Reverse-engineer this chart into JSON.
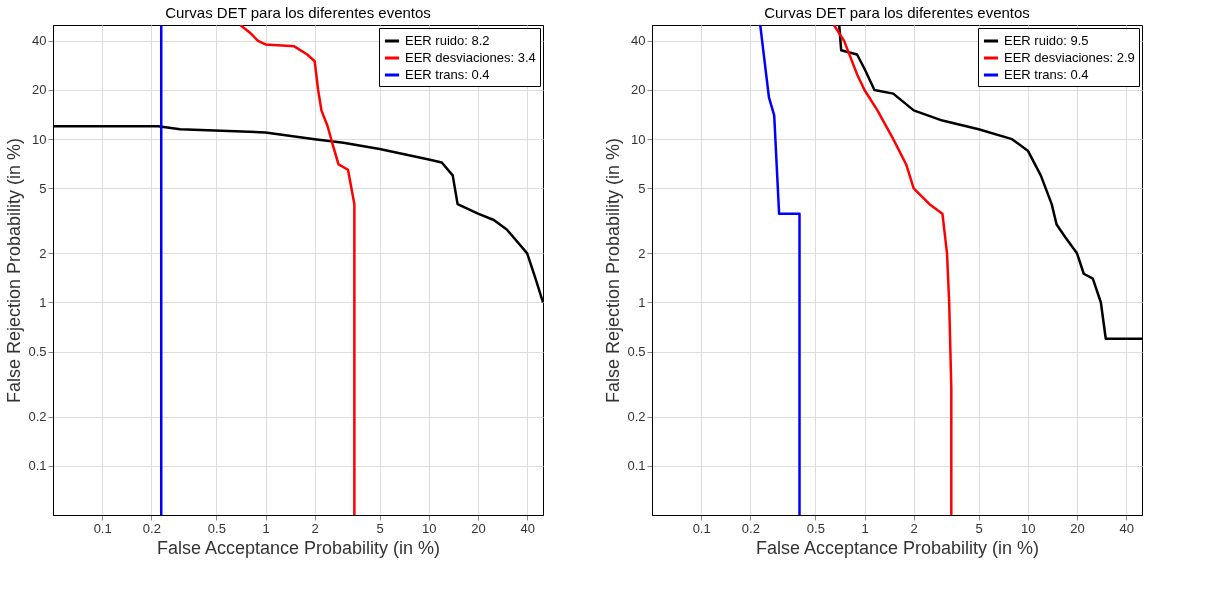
{
  "chart_data": [
    {
      "type": "line",
      "title": "Curvas DET para los diferentes eventos",
      "xlabel": "False Acceptance Probability (in %)",
      "ylabel": "False Rejection Probability (in %)",
      "log": "xy",
      "xlim": [
        0.05,
        50
      ],
      "ylim": [
        0.05,
        50
      ],
      "xticks": [
        0.1,
        0.2,
        0.5,
        1,
        2,
        5,
        10,
        20,
        40
      ],
      "yticks": [
        0.1,
        0.2,
        0.5,
        1,
        2,
        5,
        10,
        20,
        40
      ],
      "grid": true,
      "legend": "top right",
      "series": [
        {
          "name": "EER ruido: 8.2",
          "color": "#000000",
          "x": [
            0.05,
            0.22,
            0.3,
            1,
            2,
            3,
            5,
            10,
            12,
            14,
            15,
            20,
            25,
            30,
            40,
            45,
            50
          ],
          "values": [
            12,
            12,
            11.5,
            11,
            10,
            9.5,
            8.7,
            7.5,
            7.2,
            6,
            4,
            3.5,
            3.2,
            2.8,
            2,
            1.4,
            1.0
          ]
        },
        {
          "name": "EER desviaciones: 3.4",
          "color": "#ff0000",
          "x": [
            0.7,
            0.8,
            0.9,
            1,
            1.5,
            1.8,
            2,
            2.1,
            2.2,
            2.4,
            2.6,
            2.8,
            3.2,
            3.5,
            3.5
          ],
          "values": [
            50,
            45,
            40,
            38,
            37,
            33,
            30,
            20,
            15,
            12,
            9,
            7,
            6.5,
            4,
            0.05
          ]
        },
        {
          "name": "EER trans: 0.4",
          "color": "#0000ff",
          "x": [
            0.23,
            0.23
          ],
          "values": [
            0.05,
            50
          ]
        }
      ]
    },
    {
      "type": "line",
      "title": "Curvas DET para los diferentes eventos",
      "xlabel": "False Acceptance Probability (in %)",
      "ylabel": "False Rejection Probability (in %)",
      "log": "xy",
      "xlim": [
        0.05,
        50
      ],
      "ylim": [
        0.05,
        50
      ],
      "xticks": [
        0.1,
        0.2,
        0.5,
        1,
        2,
        5,
        10,
        20,
        40
      ],
      "yticks": [
        0.1,
        0.2,
        0.5,
        1,
        2,
        5,
        10,
        20,
        40
      ],
      "grid": true,
      "legend": "top right",
      "series": [
        {
          "name": "EER ruido: 9.5",
          "color": "#000000",
          "x": [
            0.7,
            0.72,
            0.9,
            1.0,
            1.15,
            1.5,
            2,
            3,
            5,
            8,
            10,
            12,
            14,
            15,
            17,
            20,
            22,
            25,
            28,
            30,
            50
          ],
          "values": [
            50,
            35,
            33,
            27,
            20,
            19,
            15,
            13,
            11.5,
            10,
            8.5,
            6,
            4,
            3,
            2.5,
            2,
            1.5,
            1.4,
            1,
            0.6,
            0.6
          ]
        },
        {
          "name": "EER desviaciones: 2.9",
          "color": "#ff0000",
          "x": [
            0.65,
            0.75,
            0.9,
            1,
            1.2,
            1.5,
            1.8,
            2,
            2.5,
            3,
            3.2,
            3.3,
            3.4,
            3.4
          ],
          "values": [
            50,
            40,
            25,
            20,
            15,
            10,
            7,
            5,
            4,
            3.5,
            2,
            1,
            0.3,
            0.05
          ]
        },
        {
          "name": "EER trans: 0.4",
          "color": "#0000ff",
          "x": [
            0.23,
            0.24,
            0.26,
            0.28,
            0.3,
            0.4,
            0.4
          ],
          "values": [
            50,
            35,
            18,
            14,
            3.5,
            3.5,
            0.05
          ]
        }
      ]
    }
  ]
}
